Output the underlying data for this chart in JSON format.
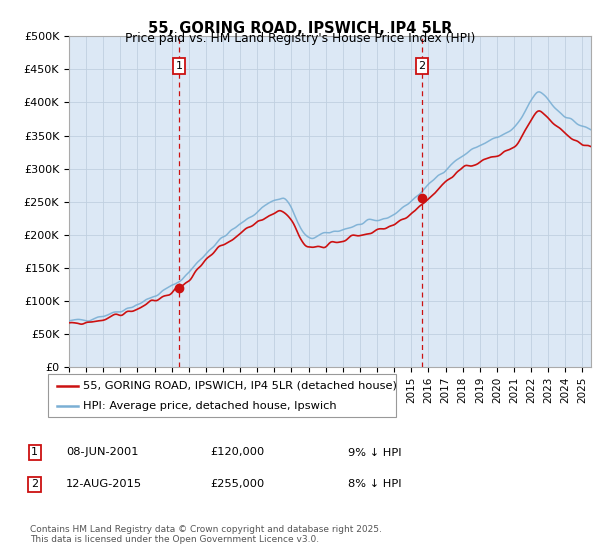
{
  "title": "55, GORING ROAD, IPSWICH, IP4 5LR",
  "subtitle": "Price paid vs. HM Land Registry's House Price Index (HPI)",
  "ylabel_ticks": [
    "£0",
    "£50K",
    "£100K",
    "£150K",
    "£200K",
    "£250K",
    "£300K",
    "£350K",
    "£400K",
    "£450K",
    "£500K"
  ],
  "ytick_vals": [
    0,
    50000,
    100000,
    150000,
    200000,
    250000,
    300000,
    350000,
    400000,
    450000,
    500000
  ],
  "xmin": 1995.0,
  "xmax": 2025.5,
  "ymin": 0,
  "ymax": 500000,
  "vline1_x": 2001.44,
  "vline2_x": 2015.62,
  "line1_label": "55, GORING ROAD, IPSWICH, IP4 5LR (detached house)",
  "line2_label": "HPI: Average price, detached house, Ipswich",
  "line1_color": "#cc1111",
  "line2_color": "#7aafd4",
  "vline_color": "#cc1111",
  "transaction1": [
    "1",
    "08-JUN-2001",
    "£120,000",
    "9% ↓ HPI"
  ],
  "transaction2": [
    "2",
    "12-AUG-2015",
    "£255,000",
    "8% ↓ HPI"
  ],
  "footer": "Contains HM Land Registry data © Crown copyright and database right 2025.\nThis data is licensed under the Open Government Licence v3.0.",
  "background_color": "#ffffff",
  "plot_bg_color": "#dce8f5",
  "grid_color": "#c0d0e0"
}
